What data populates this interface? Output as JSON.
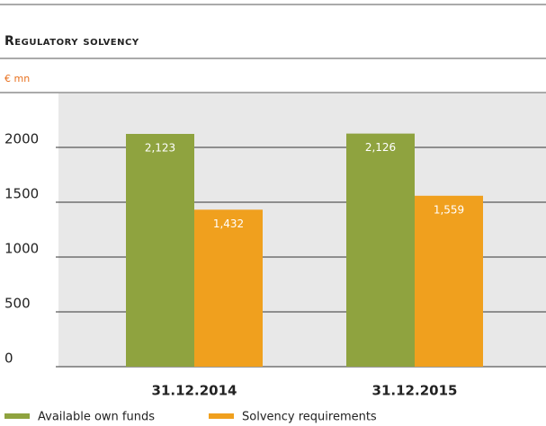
{
  "chart_data": {
    "type": "bar",
    "title": "Regulatory solvency",
    "unit_label": "€ mn",
    "categories": [
      "31.12.2014",
      "31.12.2015"
    ],
    "series": [
      {
        "name": "Available own funds",
        "color": "#8fa33f",
        "values": [
          2123,
          2126
        ],
        "value_labels": [
          "2,123",
          "2,126"
        ]
      },
      {
        "name": "Solvency requirements",
        "color": "#f0a01e",
        "values": [
          1432,
          1559
        ],
        "value_labels": [
          "1,432",
          "1,559"
        ]
      }
    ],
    "ylim": [
      0,
      2500
    ],
    "yticks": [
      0,
      500,
      1000,
      1500,
      2000
    ],
    "grid": true
  }
}
